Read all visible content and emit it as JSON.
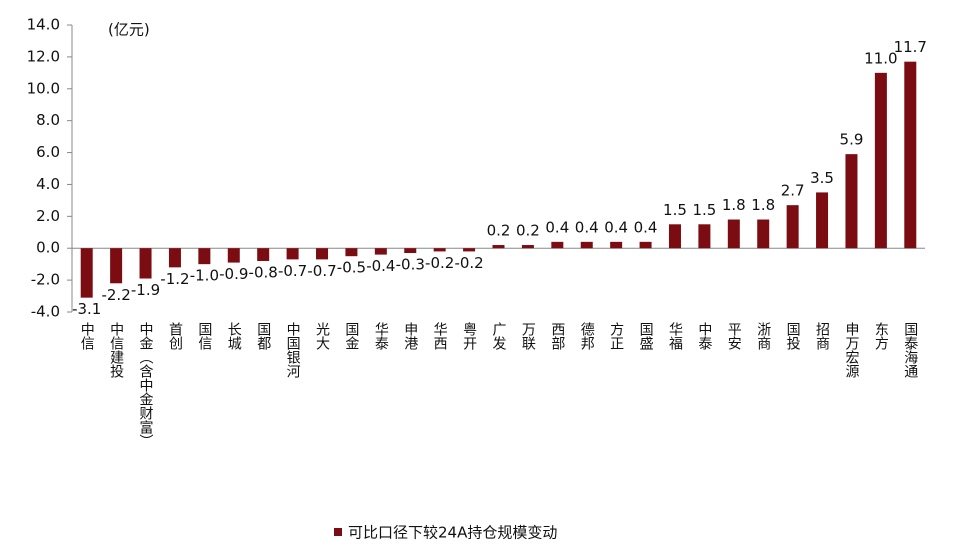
{
  "chart_data": {
    "type": "bar",
    "annotation": "(亿元)",
    "categories": [
      "中信",
      "中信建投",
      "中金（含中金财富）",
      "首创",
      "国信",
      "长城",
      "国都",
      "中国银河",
      "光大",
      "国金",
      "华泰",
      "申港",
      "华西",
      "粤开",
      "广发",
      "万联",
      "西部",
      "德邦",
      "方正",
      "国盛",
      "华福",
      "中泰",
      "平安",
      "浙商",
      "国投",
      "招商",
      "申万宏源",
      "东方",
      "国泰海通"
    ],
    "series": [
      {
        "name": "可比口径下较24A持仓规模变动",
        "color": "#7b0c12",
        "values": [
          -3.1,
          -2.2,
          -1.9,
          -1.2,
          -1.0,
          -0.9,
          -0.8,
          -0.7,
          -0.7,
          -0.5,
          -0.4,
          -0.3,
          -0.2,
          -0.2,
          0.2,
          0.2,
          0.4,
          0.4,
          0.4,
          0.4,
          1.5,
          1.5,
          1.8,
          1.8,
          2.7,
          3.5,
          5.9,
          11.0,
          11.7
        ],
        "value_labels": [
          "-3.1",
          "-2.2",
          "-1.9",
          "-1.2",
          "-1.0",
          "-0.9",
          "-0.8",
          "-0.7",
          "-0.7",
          "-0.5",
          "-0.4",
          "-0.3",
          "-0.2",
          "-0.2",
          "0.2",
          "0.2",
          "0.4",
          "0.4",
          "0.4",
          "0.4",
          "1.5",
          "1.5",
          "1.8",
          "1.8",
          "2.7",
          "3.5",
          "5.9",
          "11.0",
          "11.7"
        ]
      }
    ],
    "ylim": [
      -4,
      14
    ],
    "yticks": [
      {
        "value": -4,
        "label": "-4.0"
      },
      {
        "value": -2,
        "label": "-2.0"
      },
      {
        "value": 0,
        "label": "0.0"
      },
      {
        "value": 2,
        "label": "2.0"
      },
      {
        "value": 4,
        "label": "4.0"
      },
      {
        "value": 6,
        "label": "6.0"
      },
      {
        "value": 8,
        "label": "8.0"
      },
      {
        "value": 10,
        "label": "10.0"
      },
      {
        "value": 12,
        "label": "12.0"
      },
      {
        "value": 14,
        "label": "14.0"
      }
    ],
    "legend": "bottom"
  }
}
